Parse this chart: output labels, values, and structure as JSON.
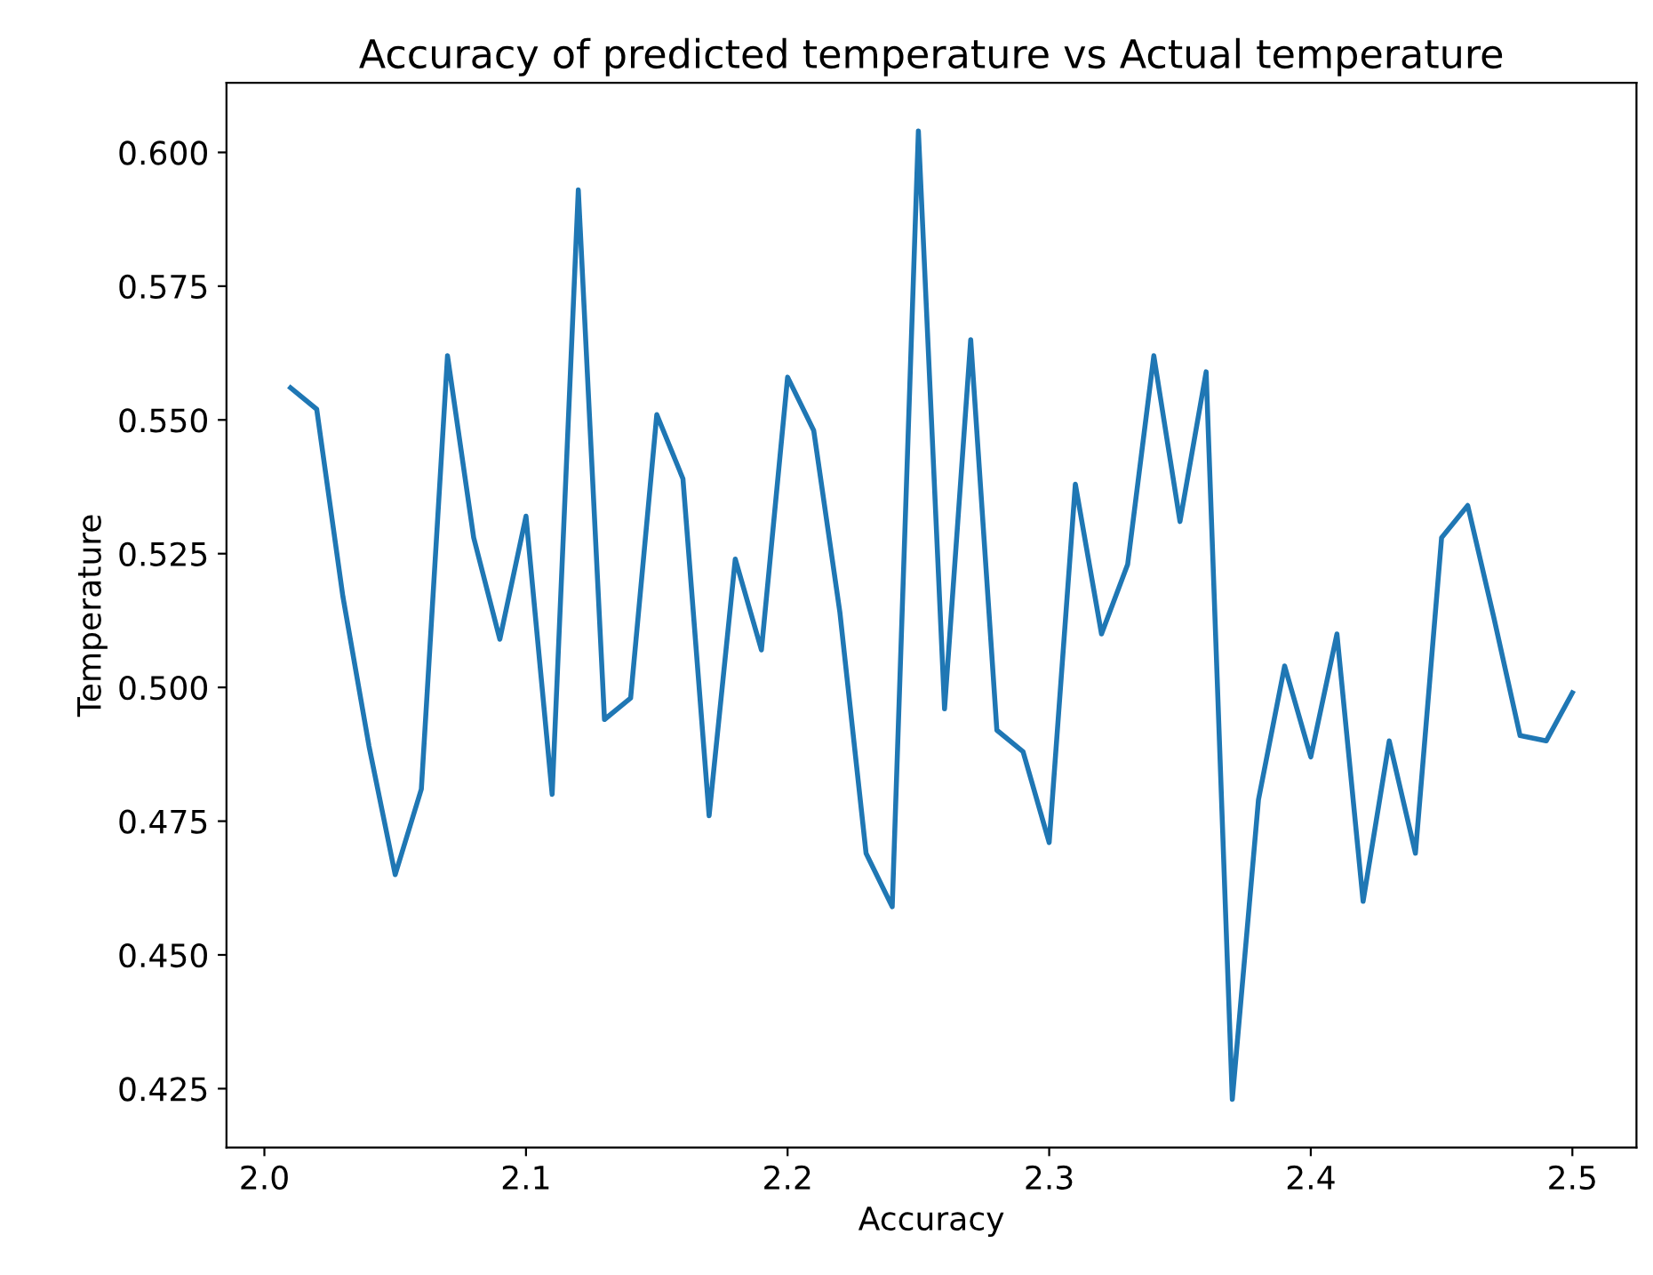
{
  "chart_data": {
    "type": "line",
    "title": "Accuracy of predicted temperature vs Actual temperature",
    "xlabel": "Accuracy",
    "ylabel": "Temperature",
    "x": [
      2.01,
      2.02,
      2.03,
      2.04,
      2.05,
      2.06,
      2.07,
      2.08,
      2.09,
      2.1,
      2.11,
      2.12,
      2.13,
      2.14,
      2.15,
      2.16,
      2.17,
      2.18,
      2.19,
      2.2,
      2.21,
      2.22,
      2.23,
      2.24,
      2.25,
      2.26,
      2.27,
      2.28,
      2.29,
      2.3,
      2.31,
      2.32,
      2.33,
      2.34,
      2.35,
      2.36,
      2.37,
      2.38,
      2.39,
      2.4,
      2.41,
      2.42,
      2.43,
      2.44,
      2.45,
      2.46,
      2.47,
      2.48,
      2.49,
      2.5
    ],
    "series": [
      {
        "color": "#1f77b4",
        "values": [
          0.556,
          0.552,
          0.517,
          0.489,
          0.465,
          0.481,
          0.562,
          0.528,
          0.509,
          0.532,
          0.48,
          0.593,
          0.494,
          0.498,
          0.551,
          0.539,
          0.476,
          0.524,
          0.507,
          0.558,
          0.548,
          0.514,
          0.469,
          0.459,
          0.604,
          0.496,
          0.565,
          0.492,
          0.488,
          0.471,
          0.538,
          0.51,
          0.523,
          0.562,
          0.531,
          0.559,
          0.423,
          0.479,
          0.504,
          0.487,
          0.51,
          0.46,
          0.49,
          0.469,
          0.528,
          0.534,
          0.513,
          0.491,
          0.49,
          0.499
        ]
      }
    ],
    "xlim": [
      1.9855,
      2.5245
    ],
    "ylim": [
      0.414,
      0.613
    ],
    "xticks": [
      {
        "value": 2.0,
        "label": "2.0"
      },
      {
        "value": 2.1,
        "label": "2.1"
      },
      {
        "value": 2.2,
        "label": "2.2"
      },
      {
        "value": 2.3,
        "label": "2.3"
      },
      {
        "value": 2.4,
        "label": "2.4"
      },
      {
        "value": 2.5,
        "label": "2.5"
      }
    ],
    "yticks": [
      {
        "value": 0.425,
        "label": "0.425"
      },
      {
        "value": 0.45,
        "label": "0.450"
      },
      {
        "value": 0.475,
        "label": "0.475"
      },
      {
        "value": 0.5,
        "label": "0.500"
      },
      {
        "value": 0.525,
        "label": "0.525"
      },
      {
        "value": 0.55,
        "label": "0.550"
      },
      {
        "value": 0.575,
        "label": "0.575"
      },
      {
        "value": 0.6,
        "label": "0.600"
      }
    ],
    "grid": false,
    "legend": false
  }
}
